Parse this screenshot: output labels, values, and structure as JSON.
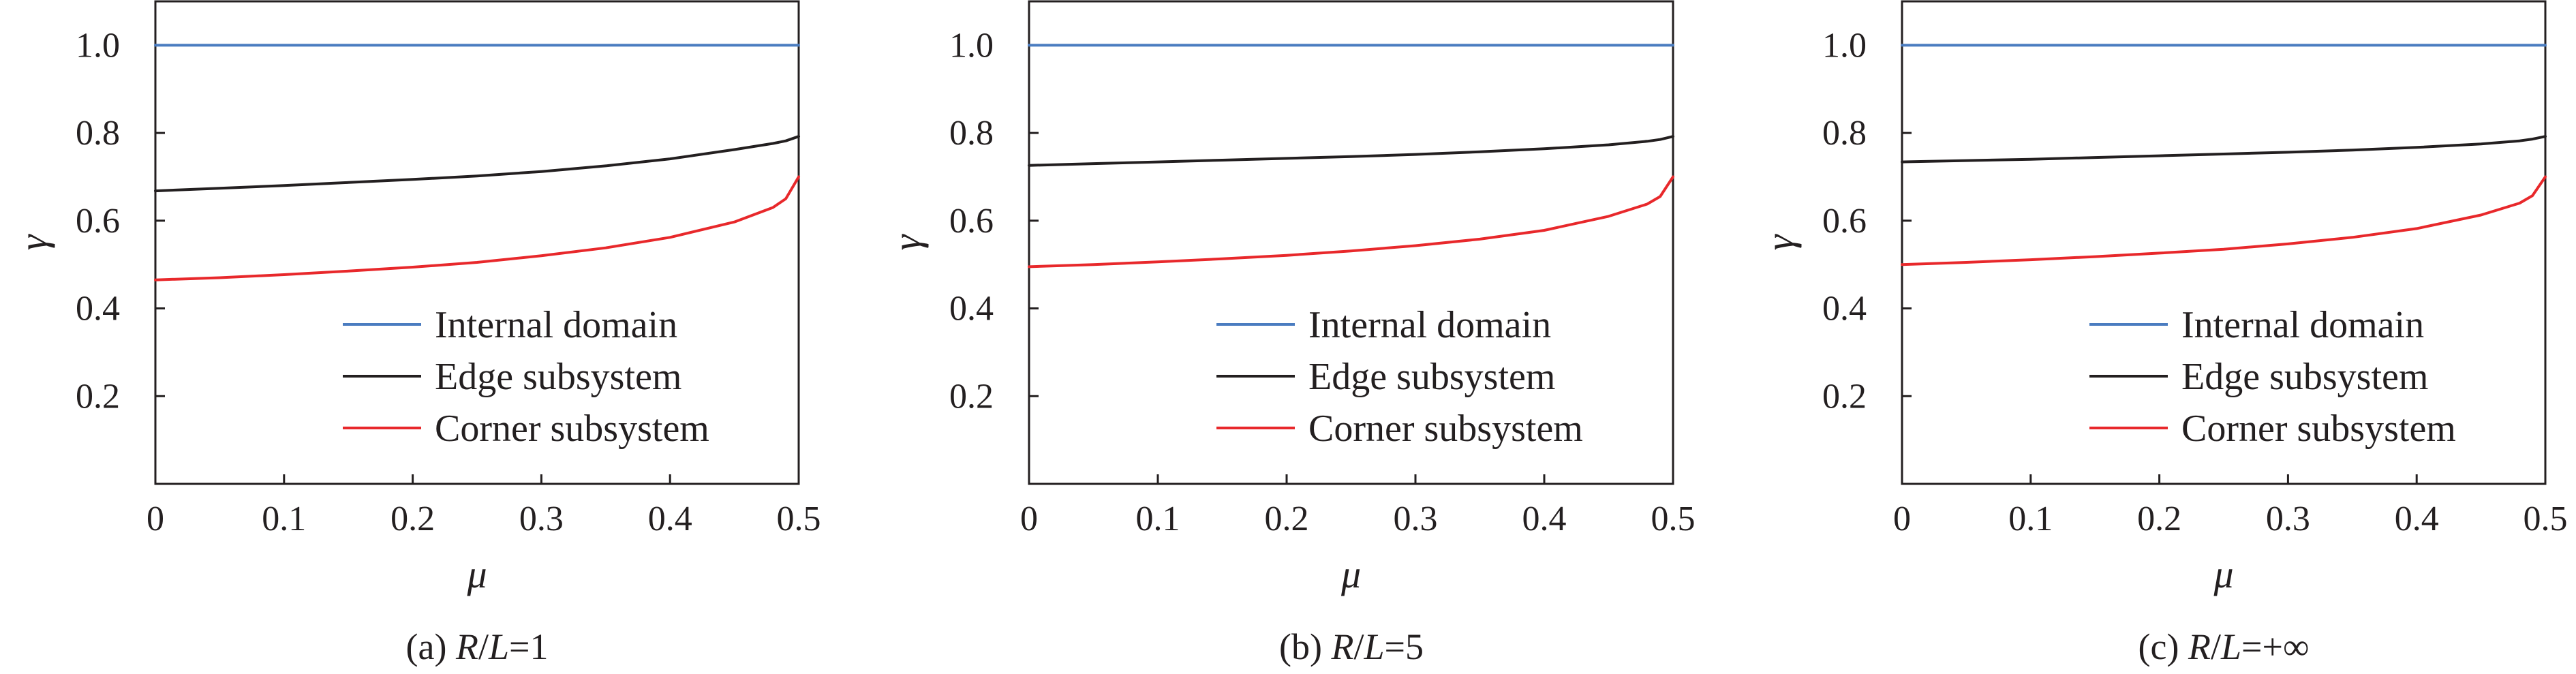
{
  "chart_data": [
    {
      "type": "line",
      "caption": {
        "prefix": "(a) ",
        "var1": "R",
        "slash": "/",
        "var2": "L",
        "suffix": "=1"
      },
      "xlabel": "μ",
      "ylabel": "γ",
      "xlim": [
        0,
        0.5
      ],
      "ylim": [
        0,
        1.1
      ],
      "xticks": [
        "0",
        "0.1",
        "0.2",
        "0.3",
        "0.4",
        "0.5"
      ],
      "xtick_values": [
        0,
        0.1,
        0.2,
        0.3,
        0.4,
        0.5
      ],
      "yticks": [
        "0.2",
        "0.4",
        "0.6",
        "0.8",
        "1.0"
      ],
      "ytick_values": [
        0.2,
        0.4,
        0.6,
        0.8,
        1.0
      ],
      "legend_position": "bottom-right",
      "x": [
        0,
        0.05,
        0.1,
        0.15,
        0.2,
        0.25,
        0.3,
        0.35,
        0.4,
        0.45,
        0.48,
        0.49,
        0.5
      ],
      "series": [
        {
          "name": "Internal domain",
          "color": "#4a7cc0",
          "values": [
            1.0,
            1.0,
            1.0,
            1.0,
            1.0,
            1.0,
            1.0,
            1.0,
            1.0,
            1.0,
            1.0,
            1.0,
            1.0
          ]
        },
        {
          "name": "Edge subsystem",
          "color": "#231f20",
          "values": [
            0.668,
            0.674,
            0.68,
            0.687,
            0.694,
            0.702,
            0.712,
            0.725,
            0.741,
            0.762,
            0.776,
            0.782,
            0.792
          ]
        },
        {
          "name": "Corner subsystem",
          "color": "#e8282b",
          "values": [
            0.465,
            0.47,
            0.477,
            0.485,
            0.494,
            0.505,
            0.52,
            0.538,
            0.562,
            0.597,
            0.63,
            0.65,
            0.7
          ]
        }
      ]
    },
    {
      "type": "line",
      "caption": {
        "prefix": "(b) ",
        "var1": "R",
        "slash": "/",
        "var2": "L",
        "suffix": "=5"
      },
      "xlabel": "μ",
      "ylabel": "γ",
      "xlim": [
        0,
        0.5
      ],
      "ylim": [
        0,
        1.1
      ],
      "xticks": [
        "0",
        "0.1",
        "0.2",
        "0.3",
        "0.4",
        "0.5"
      ],
      "xtick_values": [
        0,
        0.1,
        0.2,
        0.3,
        0.4,
        0.5
      ],
      "yticks": [
        "0.2",
        "0.4",
        "0.6",
        "0.8",
        "1.0"
      ],
      "ytick_values": [
        0.2,
        0.4,
        0.6,
        0.8,
        1.0
      ],
      "legend_position": "bottom-right",
      "x": [
        0,
        0.05,
        0.1,
        0.15,
        0.2,
        0.25,
        0.3,
        0.35,
        0.4,
        0.45,
        0.48,
        0.49,
        0.5
      ],
      "series": [
        {
          "name": "Internal domain",
          "color": "#4a7cc0",
          "values": [
            1.0,
            1.0,
            1.0,
            1.0,
            1.0,
            1.0,
            1.0,
            1.0,
            1.0,
            1.0,
            1.0,
            1.0,
            1.0
          ]
        },
        {
          "name": "Edge subsystem",
          "color": "#231f20",
          "values": [
            0.726,
            0.73,
            0.734,
            0.738,
            0.742,
            0.746,
            0.751,
            0.757,
            0.764,
            0.773,
            0.781,
            0.785,
            0.792
          ]
        },
        {
          "name": "Corner subsystem",
          "color": "#e8282b",
          "values": [
            0.495,
            0.5,
            0.506,
            0.513,
            0.521,
            0.531,
            0.543,
            0.558,
            0.578,
            0.61,
            0.638,
            0.655,
            0.7
          ]
        }
      ]
    },
    {
      "type": "line",
      "caption": {
        "prefix": "(c) ",
        "var1": "R",
        "slash": "/",
        "var2": "L",
        "suffix": "=+∞"
      },
      "xlabel": "μ",
      "ylabel": "γ",
      "xlim": [
        0,
        0.5
      ],
      "ylim": [
        0,
        1.1
      ],
      "xticks": [
        "0",
        "0.1",
        "0.2",
        "0.3",
        "0.4",
        "0.5"
      ],
      "xtick_values": [
        0,
        0.1,
        0.2,
        0.3,
        0.4,
        0.5
      ],
      "yticks": [
        "0.2",
        "0.4",
        "0.6",
        "0.8",
        "1.0"
      ],
      "ytick_values": [
        0.2,
        0.4,
        0.6,
        0.8,
        1.0
      ],
      "legend_position": "bottom-right",
      "x": [
        0,
        0.05,
        0.1,
        0.15,
        0.2,
        0.25,
        0.3,
        0.35,
        0.4,
        0.45,
        0.48,
        0.49,
        0.5
      ],
      "series": [
        {
          "name": "Internal domain",
          "color": "#4a7cc0",
          "values": [
            1.0,
            1.0,
            1.0,
            1.0,
            1.0,
            1.0,
            1.0,
            1.0,
            1.0,
            1.0,
            1.0,
            1.0,
            1.0
          ]
        },
        {
          "name": "Edge subsystem",
          "color": "#231f20",
          "values": [
            0.734,
            0.737,
            0.74,
            0.744,
            0.748,
            0.752,
            0.756,
            0.761,
            0.767,
            0.775,
            0.782,
            0.786,
            0.792
          ]
        },
        {
          "name": "Corner subsystem",
          "color": "#e8282b",
          "values": [
            0.5,
            0.505,
            0.511,
            0.518,
            0.526,
            0.535,
            0.547,
            0.562,
            0.582,
            0.613,
            0.64,
            0.657,
            0.7
          ]
        }
      ]
    }
  ]
}
